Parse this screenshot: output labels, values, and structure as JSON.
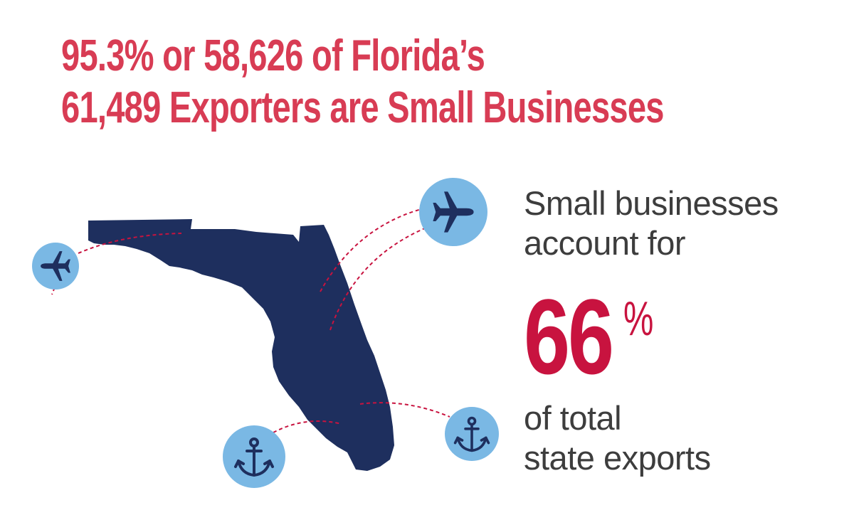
{
  "headline": {
    "line1": "95.3% or 58,626 of Florida’s",
    "line2": "61,489 Exporters are Small Businesses"
  },
  "stat": {
    "line1": "Small businesses",
    "line2": "account for",
    "value": "66",
    "unit": "%",
    "line3": "of total",
    "line4": "state exports"
  },
  "icons": [
    "airplane-icon",
    "airplane-icon",
    "anchor-icon",
    "anchor-icon"
  ],
  "colors": {
    "headline": "#d83c54",
    "accent": "#c8133f",
    "map": "#1e2f5e",
    "icon_circle": "#7ab8e4",
    "route": "#c8133f",
    "text": "#3d3d3d"
  }
}
